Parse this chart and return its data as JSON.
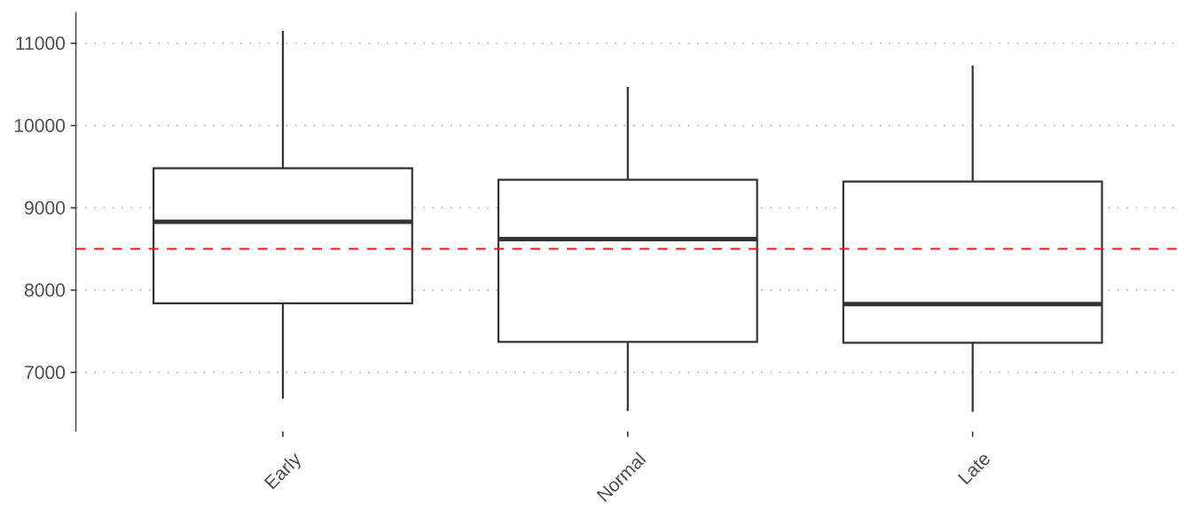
{
  "chart_data": {
    "type": "box",
    "categories": [
      "Early",
      "Normal",
      "Late"
    ],
    "boxes": [
      {
        "low": 6680,
        "q1": 7840,
        "median": 8830,
        "q3": 9480,
        "high": 11150
      },
      {
        "low": 6530,
        "q1": 7370,
        "median": 8620,
        "q3": 9340,
        "high": 10470
      },
      {
        "low": 6520,
        "q1": 7360,
        "median": 7830,
        "q3": 9320,
        "high": 10730
      }
    ],
    "color": "#333333",
    "ylim": [
      6280,
      11380
    ],
    "yticks": [
      7000,
      8000,
      9000,
      10000,
      11000
    ],
    "grid": "y",
    "ref_lines": [
      {
        "axis": "y",
        "value": 8500,
        "color": "#e8191f",
        "line_style": "dashed"
      }
    ]
  }
}
